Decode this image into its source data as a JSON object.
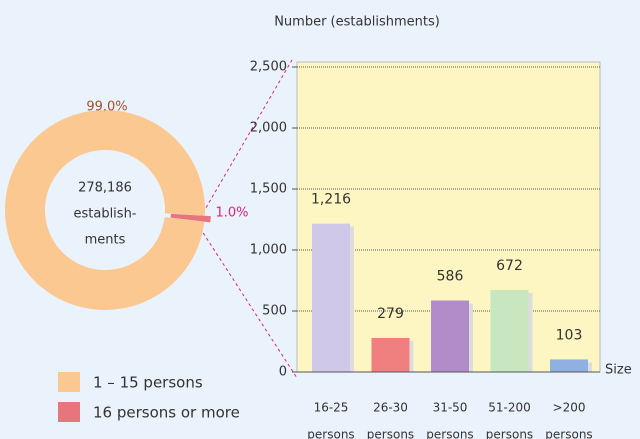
{
  "chart_data": [
    {
      "type": "pie",
      "categories": [
        "1 – 15 persons",
        "16 persons or more"
      ],
      "values": [
        99.0,
        1.0
      ],
      "value_labels": [
        "99.0%",
        "1.0%"
      ],
      "colors": [
        "#fbc892",
        "#e8747c"
      ],
      "label_colors": [
        "#a0522d",
        "#e8207a"
      ],
      "center_text": [
        "278,186",
        "establish-",
        "ments"
      ]
    },
    {
      "type": "bar",
      "title": "Number (establishments)",
      "x_label": "Size",
      "categories": [
        [
          "16-25",
          "persons"
        ],
        [
          "26-30",
          "persons"
        ],
        [
          "31-50",
          "persons"
        ],
        [
          "51-200",
          "persons"
        ],
        [
          ">200",
          "persons"
        ]
      ],
      "values": [
        1216,
        279,
        586,
        672,
        103
      ],
      "value_labels": [
        "1,216",
        "279",
        "586",
        "672",
        "103"
      ],
      "colors": [
        "#cfc8e8",
        "#f08080",
        "#b08cc8",
        "#c8e6c0",
        "#8fb0e0"
      ],
      "ylim": [
        0,
        2500
      ],
      "yticks": [
        0,
        500,
        {
          "value": 1000,
          "label": "1,000"
        },
        {
          "value": 1500,
          "label": "1,500"
        },
        {
          "value": 2000,
          "label": "2,000"
        },
        {
          "value": 2500,
          "label": "2,500"
        }
      ],
      "grid": true
    }
  ]
}
